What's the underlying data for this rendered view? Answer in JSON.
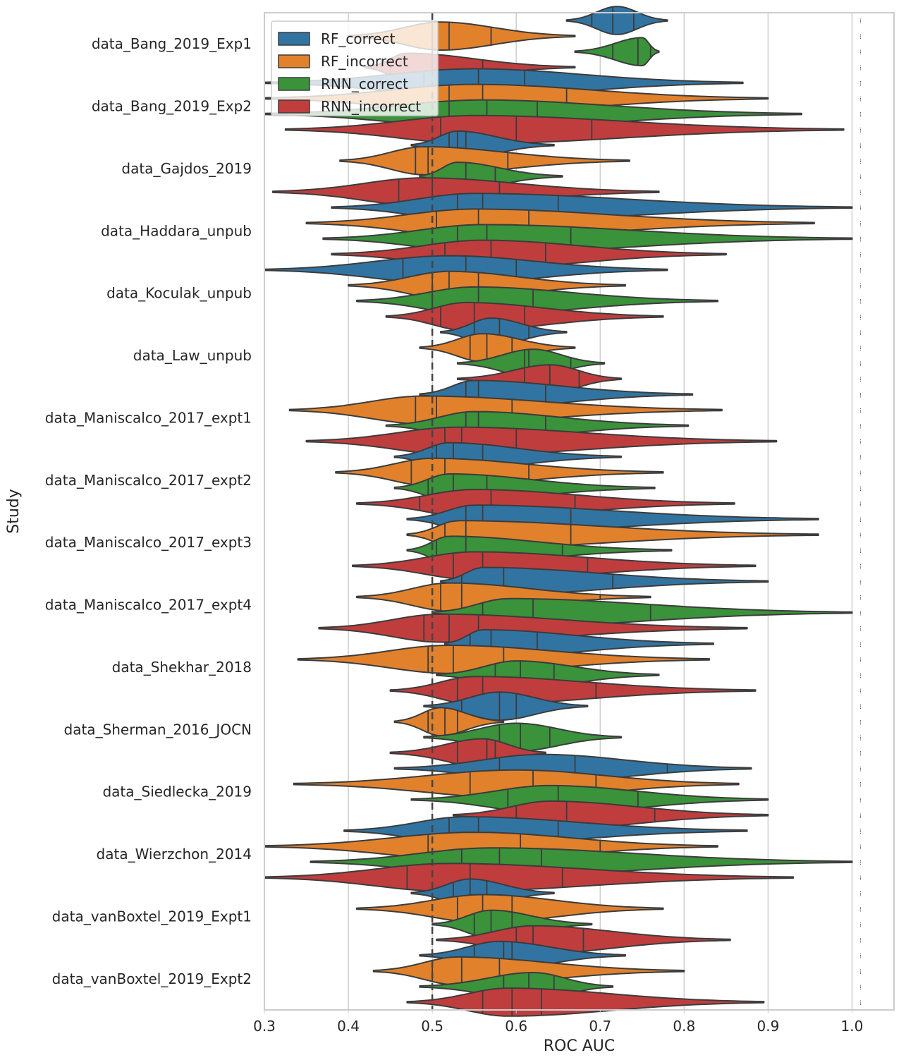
{
  "chart_data": {
    "type": "violin",
    "orientation": "horizontal",
    "title": "",
    "xlabel": "ROC AUC",
    "ylabel": "Study",
    "xlim": [
      0.3,
      1.05
    ],
    "xticks": [
      0.3,
      0.4,
      0.5,
      0.6,
      0.7,
      0.8,
      0.9,
      1.0
    ],
    "xtick_labels": [
      "0.3",
      "0.4",
      "0.5",
      "0.6",
      "0.7",
      "0.8",
      "0.9",
      "1.0"
    ],
    "grid": "vertical",
    "reference_line": 0.5,
    "legend_position": "top-left",
    "series": [
      {
        "name": "RF_correct",
        "color": "#3274a1"
      },
      {
        "name": "RF_incorrect",
        "color": "#e1812c"
      },
      {
        "name": "RNN_correct",
        "color": "#3a923a"
      },
      {
        "name": "RNN_incorrect",
        "color": "#c03d3e"
      }
    ],
    "studies": [
      {
        "name": "data_Bang_2019_Exp1",
        "violins": [
          {
            "min": 0.66,
            "max": 0.78,
            "q1": 0.69,
            "median": 0.715,
            "q3": 0.74,
            "mode": 0.72
          },
          {
            "min": 0.4,
            "max": 0.67,
            "q1": 0.5,
            "median": 0.52,
            "q3": 0.57,
            "mode": 0.51
          },
          {
            "min": 0.67,
            "max": 0.77,
            "q1": 0.715,
            "median": 0.745,
            "q3": 0.76,
            "mode": 0.75
          },
          {
            "min": 0.42,
            "max": 0.67,
            "q1": 0.45,
            "median": 0.5,
            "q3": 0.56,
            "mode": 0.47
          }
        ]
      },
      {
        "name": "data_Bang_2019_Exp2",
        "violins": [
          {
            "min": 0.3,
            "max": 0.87,
            "q1": 0.49,
            "median": 0.555,
            "q3": 0.61,
            "mode": 0.55
          },
          {
            "min": 0.3,
            "max": 0.9,
            "q1": 0.52,
            "median": 0.56,
            "q3": 0.66,
            "mode": 0.55
          },
          {
            "min": 0.3,
            "max": 0.94,
            "q1": 0.52,
            "median": 0.565,
            "q3": 0.625,
            "mode": 0.56
          },
          {
            "min": 0.325,
            "max": 0.99,
            "q1": 0.51,
            "median": 0.6,
            "q3": 0.69,
            "mode": 0.55
          }
        ]
      },
      {
        "name": "data_Gajdos_2019",
        "violins": [
          {
            "min": 0.475,
            "max": 0.645,
            "q1": 0.52,
            "median": 0.53,
            "q3": 0.54,
            "mode": 0.53
          },
          {
            "min": 0.39,
            "max": 0.735,
            "q1": 0.48,
            "median": 0.495,
            "q3": 0.59,
            "mode": 0.49
          },
          {
            "min": 0.485,
            "max": 0.655,
            "q1": 0.5,
            "median": 0.54,
            "q3": 0.575,
            "mode": 0.53
          },
          {
            "min": 0.31,
            "max": 0.77,
            "q1": 0.46,
            "median": 0.5,
            "q3": 0.58,
            "mode": 0.49
          }
        ]
      },
      {
        "name": "data_Haddara_unpub",
        "violins": [
          {
            "min": 0.38,
            "max": 1.0,
            "q1": 0.53,
            "median": 0.56,
            "q3": 0.65,
            "mode": 0.55
          },
          {
            "min": 0.35,
            "max": 0.955,
            "q1": 0.505,
            "median": 0.555,
            "q3": 0.615,
            "mode": 0.55
          },
          {
            "min": 0.37,
            "max": 1.0,
            "q1": 0.53,
            "median": 0.565,
            "q3": 0.665,
            "mode": 0.56
          },
          {
            "min": 0.38,
            "max": 0.85,
            "q1": 0.515,
            "median": 0.57,
            "q3": 0.635,
            "mode": 0.56
          }
        ]
      },
      {
        "name": "data_Koculak_unpub",
        "violins": [
          {
            "min": 0.3,
            "max": 0.78,
            "q1": 0.465,
            "median": 0.54,
            "q3": 0.6,
            "mode": 0.52
          },
          {
            "min": 0.4,
            "max": 0.73,
            "q1": 0.5,
            "median": 0.52,
            "q3": 0.555,
            "mode": 0.52
          },
          {
            "min": 0.41,
            "max": 0.84,
            "q1": 0.5,
            "median": 0.555,
            "q3": 0.62,
            "mode": 0.55
          },
          {
            "min": 0.445,
            "max": 0.775,
            "q1": 0.51,
            "median": 0.55,
            "q3": 0.61,
            "mode": 0.54
          }
        ]
      },
      {
        "name": "data_Law_unpub",
        "violins": [
          {
            "min": 0.51,
            "max": 0.66,
            "q1": 0.55,
            "median": 0.58,
            "q3": 0.615,
            "mode": 0.57
          },
          {
            "min": 0.485,
            "max": 0.67,
            "q1": 0.545,
            "median": 0.565,
            "q3": 0.595,
            "mode": 0.56
          },
          {
            "min": 0.53,
            "max": 0.705,
            "q1": 0.61,
            "median": 0.615,
            "q3": 0.665,
            "mode": 0.62
          },
          {
            "min": 0.53,
            "max": 0.725,
            "q1": 0.61,
            "median": 0.64,
            "q3": 0.675,
            "mode": 0.64
          }
        ]
      },
      {
        "name": "data_Maniscalco_2017_expt1",
        "violins": [
          {
            "min": 0.485,
            "max": 0.81,
            "q1": 0.54,
            "median": 0.555,
            "q3": 0.635,
            "mode": 0.55
          },
          {
            "min": 0.33,
            "max": 0.845,
            "q1": 0.48,
            "median": 0.505,
            "q3": 0.595,
            "mode": 0.49
          },
          {
            "min": 0.445,
            "max": 0.805,
            "q1": 0.54,
            "median": 0.555,
            "q3": 0.635,
            "mode": 0.55
          },
          {
            "min": 0.35,
            "max": 0.91,
            "q1": 0.515,
            "median": 0.535,
            "q3": 0.6,
            "mode": 0.53
          }
        ]
      },
      {
        "name": "data_Maniscalco_2017_expt2",
        "violins": [
          {
            "min": 0.455,
            "max": 0.725,
            "q1": 0.505,
            "median": 0.525,
            "q3": 0.56,
            "mode": 0.52
          },
          {
            "min": 0.385,
            "max": 0.775,
            "q1": 0.475,
            "median": 0.515,
            "q3": 0.615,
            "mode": 0.5
          },
          {
            "min": 0.455,
            "max": 0.765,
            "q1": 0.495,
            "median": 0.525,
            "q3": 0.565,
            "mode": 0.52
          },
          {
            "min": 0.41,
            "max": 0.86,
            "q1": 0.485,
            "median": 0.57,
            "q3": 0.67,
            "mode": 0.55
          }
        ]
      },
      {
        "name": "data_Maniscalco_2017_expt3",
        "violins": [
          {
            "min": 0.47,
            "max": 0.96,
            "q1": 0.54,
            "median": 0.56,
            "q3": 0.665,
            "mode": 0.55
          },
          {
            "min": 0.47,
            "max": 0.96,
            "q1": 0.515,
            "median": 0.54,
            "q3": 0.665,
            "mode": 0.53
          },
          {
            "min": 0.47,
            "max": 0.785,
            "q1": 0.505,
            "median": 0.54,
            "q3": 0.655,
            "mode": 0.52
          },
          {
            "min": 0.405,
            "max": 0.885,
            "q1": 0.525,
            "median": 0.56,
            "q3": 0.685,
            "mode": 0.55
          }
        ]
      },
      {
        "name": "data_Maniscalco_2017_expt4",
        "violins": [
          {
            "min": 0.51,
            "max": 0.9,
            "q1": 0.535,
            "median": 0.585,
            "q3": 0.715,
            "mode": 0.56
          },
          {
            "min": 0.41,
            "max": 0.76,
            "q1": 0.51,
            "median": 0.535,
            "q3": 0.7,
            "mode": 0.52
          },
          {
            "min": 0.5,
            "max": 1.0,
            "q1": 0.56,
            "median": 0.62,
            "q3": 0.76,
            "mode": 0.59
          },
          {
            "min": 0.365,
            "max": 0.875,
            "q1": 0.49,
            "median": 0.52,
            "q3": 0.555,
            "mode": 0.51
          }
        ]
      },
      {
        "name": "data_Shekhar_2018",
        "violins": [
          {
            "min": 0.515,
            "max": 0.835,
            "q1": 0.545,
            "median": 0.57,
            "q3": 0.625,
            "mode": 0.56
          },
          {
            "min": 0.34,
            "max": 0.83,
            "q1": 0.495,
            "median": 0.525,
            "q3": 0.585,
            "mode": 0.52
          },
          {
            "min": 0.505,
            "max": 0.77,
            "q1": 0.575,
            "median": 0.605,
            "q3": 0.645,
            "mode": 0.6
          },
          {
            "min": 0.45,
            "max": 0.885,
            "q1": 0.53,
            "median": 0.56,
            "q3": 0.695,
            "mode": 0.55
          }
        ]
      },
      {
        "name": "data_Sherman_2016_JOCN",
        "violins": [
          {
            "min": 0.49,
            "max": 0.685,
            "q1": 0.535,
            "median": 0.58,
            "q3": 0.6,
            "mode": 0.58
          },
          {
            "min": 0.455,
            "max": 0.585,
            "q1": 0.495,
            "median": 0.515,
            "q3": 0.53,
            "mode": 0.51
          },
          {
            "min": 0.49,
            "max": 0.725,
            "q1": 0.58,
            "median": 0.605,
            "q3": 0.64,
            "mode": 0.6
          },
          {
            "min": 0.45,
            "max": 0.635,
            "q1": 0.53,
            "median": 0.565,
            "q3": 0.575,
            "mode": 0.56
          }
        ]
      },
      {
        "name": "data_Siedlecka_2019",
        "violins": [
          {
            "min": 0.455,
            "max": 0.88,
            "q1": 0.58,
            "median": 0.67,
            "q3": 0.78,
            "mode": 0.63
          },
          {
            "min": 0.335,
            "max": 0.865,
            "q1": 0.545,
            "median": 0.62,
            "q3": 0.695,
            "mode": 0.6
          },
          {
            "min": 0.475,
            "max": 0.9,
            "q1": 0.59,
            "median": 0.65,
            "q3": 0.745,
            "mode": 0.64
          },
          {
            "min": 0.525,
            "max": 0.9,
            "q1": 0.6,
            "median": 0.66,
            "q3": 0.765,
            "mode": 0.64
          }
        ]
      },
      {
        "name": "data_Wierzchon_2014",
        "violins": [
          {
            "min": 0.395,
            "max": 0.875,
            "q1": 0.52,
            "median": 0.555,
            "q3": 0.65,
            "mode": 0.54
          },
          {
            "min": 0.3,
            "max": 0.84,
            "q1": 0.495,
            "median": 0.605,
            "q3": 0.7,
            "mode": 0.55
          },
          {
            "min": 0.355,
            "max": 1.0,
            "q1": 0.535,
            "median": 0.58,
            "q3": 0.63,
            "mode": 0.57
          },
          {
            "min": 0.3,
            "max": 0.93,
            "q1": 0.47,
            "median": 0.545,
            "q3": 0.655,
            "mode": 0.52
          }
        ]
      },
      {
        "name": "data_vanBoxtel_2019_Expt1",
        "violins": [
          {
            "min": 0.475,
            "max": 0.645,
            "q1": 0.525,
            "median": 0.545,
            "q3": 0.565,
            "mode": 0.545
          },
          {
            "min": 0.41,
            "max": 0.775,
            "q1": 0.53,
            "median": 0.56,
            "q3": 0.595,
            "mode": 0.56
          },
          {
            "min": 0.5,
            "max": 0.69,
            "q1": 0.55,
            "median": 0.57,
            "q3": 0.595,
            "mode": 0.57
          },
          {
            "min": 0.505,
            "max": 0.855,
            "q1": 0.6,
            "median": 0.62,
            "q3": 0.68,
            "mode": 0.62
          }
        ]
      },
      {
        "name": "data_vanBoxtel_2019_Expt2",
        "violins": [
          {
            "min": 0.485,
            "max": 0.73,
            "q1": 0.55,
            "median": 0.585,
            "q3": 0.595,
            "mode": 0.58
          },
          {
            "min": 0.43,
            "max": 0.8,
            "q1": 0.5,
            "median": 0.535,
            "q3": 0.58,
            "mode": 0.53
          },
          {
            "min": 0.485,
            "max": 0.715,
            "q1": 0.585,
            "median": 0.615,
            "q3": 0.645,
            "mode": 0.62
          },
          {
            "min": 0.47,
            "max": 0.895,
            "q1": 0.56,
            "median": 0.595,
            "q3": 0.63,
            "mode": 0.59
          }
        ]
      }
    ]
  }
}
